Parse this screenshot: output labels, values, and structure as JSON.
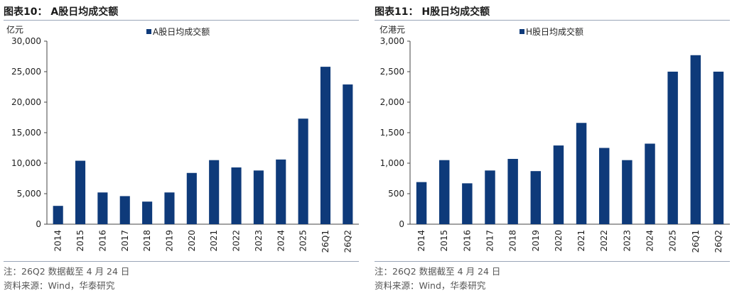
{
  "chart_data": [
    {
      "type": "bar",
      "title": "图表10：  A股日均成交额",
      "unit_label": "亿元",
      "categories": [
        "2014",
        "2015",
        "2016",
        "2017",
        "2018",
        "2019",
        "2020",
        "2021",
        "2022",
        "2023",
        "2024",
        "2025",
        "26Q1",
        "26Q2"
      ],
      "series": [
        {
          "name": "A股日均成交额",
          "values": [
            3000,
            10400,
            5200,
            4600,
            3700,
            5200,
            8400,
            10500,
            9300,
            8800,
            10600,
            17300,
            25800,
            22900
          ]
        }
      ],
      "ylim": [
        0,
        30000
      ],
      "yticks": [
        0,
        5000,
        10000,
        15000,
        20000,
        25000,
        30000
      ],
      "ytick_labels": [
        "0",
        "5,000",
        "10,000",
        "15,000",
        "20,000",
        "25,000",
        "30,000"
      ],
      "bar_color": "#0e3a7a",
      "legend": "top-center",
      "note": "注：26Q2 数据截至 4 月 24 日",
      "source": "资料来源：Wind，华泰研究"
    },
    {
      "type": "bar",
      "title": "图表11：  H股日均成交额",
      "unit_label": "亿港元",
      "categories": [
        "2014",
        "2015",
        "2016",
        "2017",
        "2018",
        "2019",
        "2020",
        "2021",
        "2022",
        "2023",
        "2024",
        "2025",
        "26Q1",
        "26Q2"
      ],
      "series": [
        {
          "name": "H股日均成交额",
          "values": [
            690,
            1050,
            670,
            880,
            1070,
            870,
            1290,
            1660,
            1250,
            1050,
            1320,
            2500,
            2770,
            2500
          ]
        }
      ],
      "ylim": [
        0,
        3000
      ],
      "yticks": [
        0,
        500,
        1000,
        1500,
        2000,
        2500,
        3000
      ],
      "ytick_labels": [
        "0",
        "500",
        "1,000",
        "1,500",
        "2,000",
        "2,500",
        "3,000"
      ],
      "bar_color": "#0e3a7a",
      "legend": "top-center",
      "note": "注：26Q2 数据截至 4 月 24 日",
      "source": "资料来源：Wind，华泰研究"
    }
  ]
}
